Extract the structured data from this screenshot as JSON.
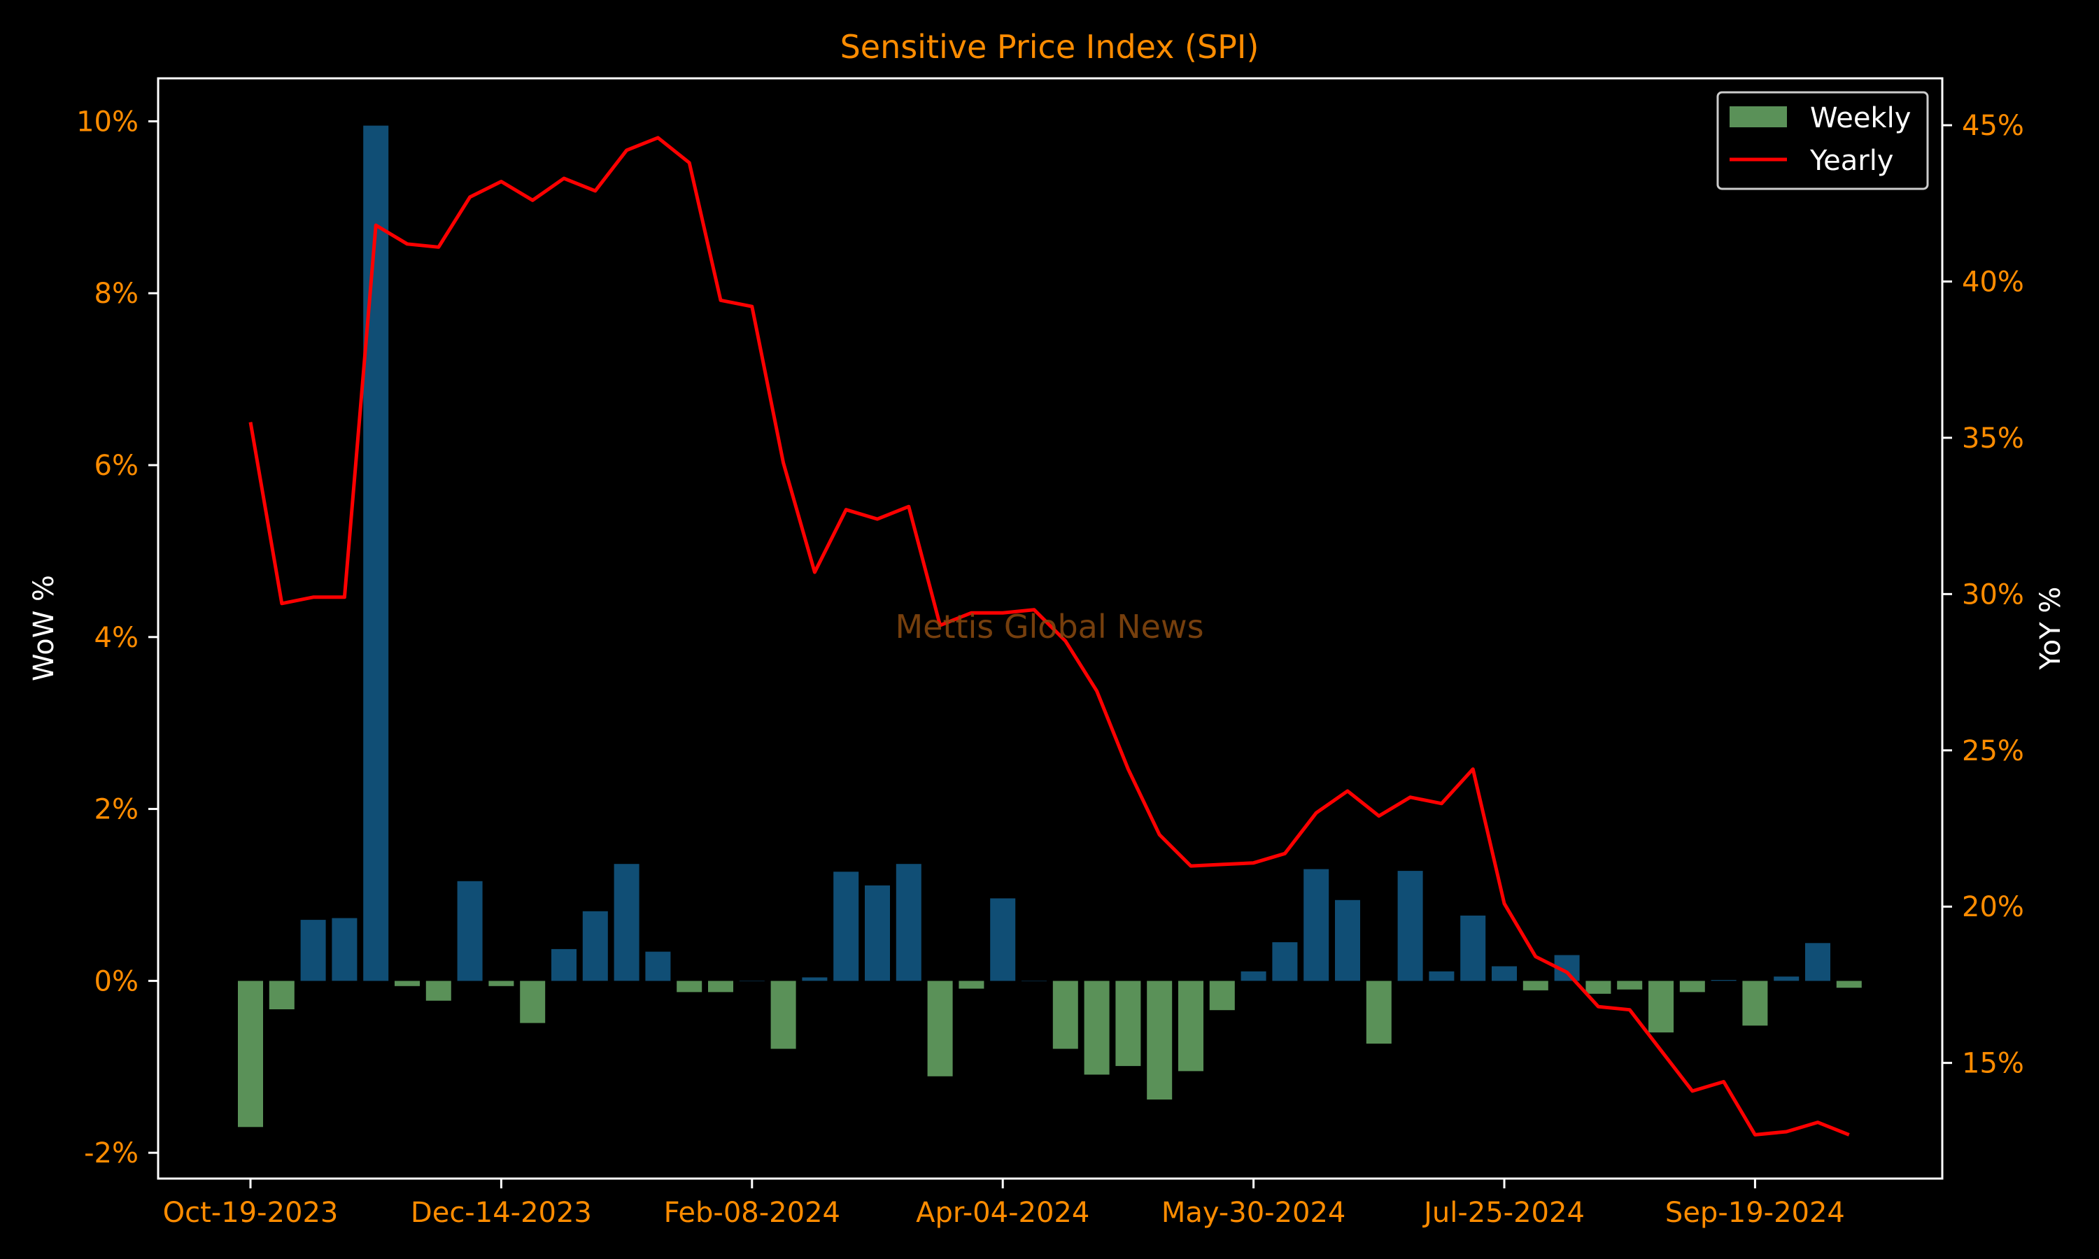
{
  "chart_data": {
    "type": "bar",
    "title": "Sensitive Price Index (SPI)",
    "watermark": "Mettis Global News",
    "ylabel_left": "WoW %",
    "ylabel_right": "YoY %",
    "x_tick_labels": [
      "Oct-19-2023",
      "Dec-14-2023",
      "Feb-08-2024",
      "Apr-04-2024",
      "May-30-2024",
      "Jul-25-2024",
      "Sep-19-2024"
    ],
    "x_tick_indices": [
      0,
      8,
      16,
      24,
      32,
      40,
      48
    ],
    "ylim_left": [
      -2.3,
      10.5
    ],
    "yticks_left": [
      -2,
      0,
      2,
      4,
      6,
      8,
      10
    ],
    "ytick_labels_left": [
      "-2%",
      "0%",
      "2%",
      "4%",
      "6%",
      "8%",
      "10%"
    ],
    "ylim_right": [
      11.3,
      46.5
    ],
    "yticks_right": [
      15,
      20,
      25,
      30,
      35,
      40,
      45
    ],
    "ytick_labels_right": [
      "15%",
      "20%",
      "25%",
      "30%",
      "35%",
      "40%",
      "45%"
    ],
    "legend": {
      "position": "top-right",
      "entries": [
        "Weekly",
        "Yearly"
      ]
    },
    "grid": false,
    "colors": {
      "positive_bar": "#104e75",
      "negative_bar": "#5a9158",
      "line": "#ff0000",
      "tick_text": "#ff8c00",
      "axis": "#ffffff",
      "background": "#000000"
    },
    "series": [
      {
        "name": "Weekly",
        "kind": "bar",
        "values": [
          -1.7,
          -0.33,
          0.71,
          0.73,
          9.95,
          -0.06,
          -0.23,
          1.16,
          -0.06,
          -0.49,
          0.37,
          0.81,
          1.36,
          0.34,
          -0.13,
          -0.13,
          0.0,
          -0.79,
          0.04,
          1.27,
          1.11,
          1.36,
          -1.11,
          -0.09,
          0.96,
          0.0,
          -0.79,
          -1.09,
          -0.99,
          -1.38,
          -1.05,
          -0.34,
          0.11,
          0.45,
          1.3,
          0.94,
          -0.73,
          1.28,
          0.11,
          0.76,
          0.17,
          -0.11,
          0.3,
          -0.15,
          -0.1,
          -0.6,
          -0.13,
          0.01,
          -0.52,
          0.05,
          0.44,
          -0.08
        ]
      },
      {
        "name": "Yearly",
        "kind": "line",
        "axis": "right",
        "values": [
          35.5,
          29.7,
          29.9,
          29.9,
          41.8,
          41.2,
          41.1,
          42.7,
          43.2,
          42.6,
          43.3,
          42.9,
          44.2,
          44.6,
          43.8,
          39.4,
          39.2,
          34.2,
          30.7,
          32.7,
          32.4,
          32.8,
          29.0,
          29.4,
          29.4,
          29.5,
          28.5,
          26.9,
          24.4,
          22.3,
          21.3,
          21.35,
          21.4,
          21.7,
          23.0,
          23.7,
          22.9,
          23.5,
          23.3,
          24.4,
          20.1,
          18.4,
          17.9,
          16.8,
          16.7,
          15.4,
          14.1,
          14.4,
          12.7,
          12.8,
          13.1,
          12.7
        ]
      }
    ]
  }
}
